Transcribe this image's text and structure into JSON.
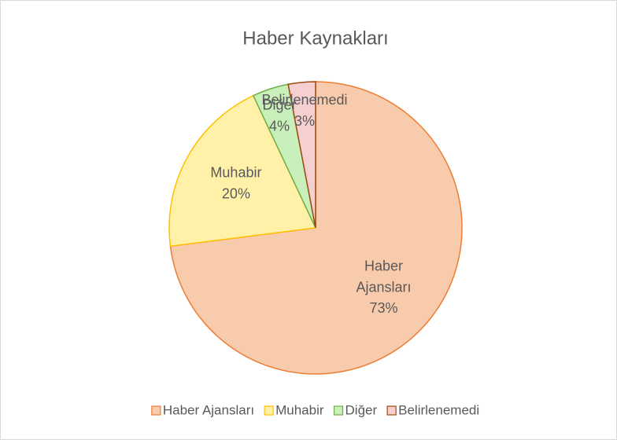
{
  "chart_data": {
    "type": "pie",
    "title": "Haber Kaynakları",
    "categories": [
      "Haber Ajansları",
      "Muhabir",
      "Diğer",
      "Belirlenemedi"
    ],
    "values": [
      73,
      20,
      4,
      3
    ],
    "value_labels": [
      "73%",
      "20%",
      "4%",
      "3%"
    ],
    "colors": [
      "#f8cbad",
      "#fff2a8",
      "#c9efbb",
      "#f6d0d0"
    ],
    "edge_colors": [
      "#ed7d31",
      "#ffc000",
      "#70ad47",
      "#9e480e"
    ],
    "legend": "bottom"
  }
}
